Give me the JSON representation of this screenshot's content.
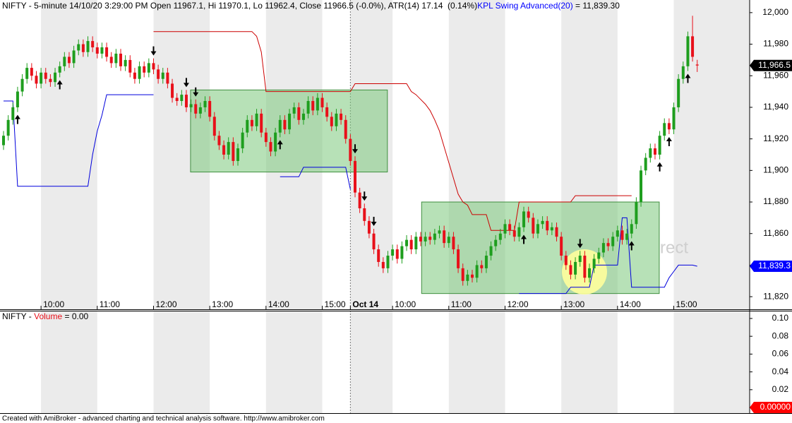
{
  "chart_data": [
    {
      "type": "candlestick",
      "title_parts": [
        {
          "text": "NIFTY - 5-minute 14/10/20 3:29:00 PM Open 11967.1, Hi 11970.1, Lo 11962.4, Close 11966.5 (-0.0%), ATR(14) 17.14  (0.14%)",
          "color": "#000000"
        },
        {
          "text": "KPL Swing Advanced(20)",
          "color": "#0000ff"
        },
        {
          "text": " = 11,839.30",
          "color": "#000000"
        }
      ],
      "categories": [
        null,
        null,
        null,
        null,
        null,
        null,
        null,
        null,
        "10:00",
        null,
        null,
        null,
        null,
        null,
        null,
        null,
        null,
        null,
        null,
        null,
        "11:00",
        null,
        null,
        null,
        null,
        null,
        null,
        null,
        null,
        null,
        null,
        null,
        "12:00",
        null,
        null,
        null,
        null,
        null,
        null,
        null,
        null,
        null,
        null,
        null,
        "13:00",
        null,
        null,
        null,
        null,
        null,
        null,
        null,
        null,
        null,
        null,
        null,
        "14:00",
        null,
        null,
        null,
        null,
        null,
        null,
        null,
        null,
        null,
        null,
        null,
        "15:00",
        null,
        null,
        null,
        null,
        null,
        "Oct 14",
        null,
        null,
        null,
        null,
        null,
        null,
        null,
        null,
        "10:00",
        null,
        null,
        null,
        null,
        null,
        null,
        null,
        null,
        null,
        null,
        null,
        "11:00",
        null,
        null,
        null,
        null,
        null,
        null,
        null,
        null,
        null,
        null,
        null,
        "12:00",
        null,
        null,
        null,
        null,
        null,
        null,
        null,
        null,
        null,
        null,
        null,
        "13:00",
        null,
        null,
        null,
        null,
        null,
        null,
        null,
        null,
        null,
        null,
        null,
        "14:00",
        null,
        null,
        null,
        null,
        null,
        null,
        null,
        null,
        null,
        null,
        null,
        "15:00",
        null,
        null,
        null,
        null,
        null
      ],
      "open": [
        11916,
        11922,
        11932,
        11940,
        11950,
        11958,
        11965,
        11960,
        11955,
        11962,
        11958,
        11956,
        11962,
        11966,
        11972,
        11968,
        11976,
        11980,
        11975,
        11982,
        11978,
        11974,
        11978,
        11972,
        11968,
        11974,
        11966,
        11970,
        11962,
        11958,
        11966,
        11962,
        11968,
        11964,
        11958,
        11962,
        11955,
        11946,
        11944,
        11948,
        11940,
        11942,
        11936,
        11940,
        11944,
        11934,
        11922,
        11916,
        11910,
        11918,
        11906,
        11914,
        11924,
        11932,
        11928,
        11936,
        11924,
        11918,
        11912,
        11924,
        11932,
        11926,
        11936,
        11940,
        11932,
        11936,
        11944,
        11938,
        11946,
        11940,
        11934,
        11928,
        11936,
        11932,
        11920,
        11906,
        11886,
        11876,
        11868,
        11860,
        11850,
        11842,
        11838,
        11846,
        11850,
        11844,
        11852,
        11856,
        11850,
        11858,
        11855,
        11858,
        11856,
        11860,
        11862,
        11854,
        11858,
        11850,
        11838,
        11830,
        11834,
        11832,
        11840,
        11838,
        11846,
        11852,
        11856,
        11860,
        11866,
        11862,
        11858,
        11864,
        11874,
        11870,
        11860,
        11866,
        11868,
        11862,
        11864,
        11858,
        11846,
        11840,
        11834,
        11842,
        11846,
        11832,
        11838,
        11844,
        11848,
        11854,
        11852,
        11858,
        11862,
        11856,
        11860,
        11866,
        11880,
        11900,
        11908,
        11914,
        11910,
        11922,
        11930,
        11926,
        11940,
        11958,
        11966,
        11985,
        11967.1
      ],
      "high": [
        11925,
        11935,
        11943,
        11953,
        11961,
        11968,
        11968,
        11963,
        11965,
        11965,
        11961,
        11965,
        11969,
        11975,
        11975,
        11979,
        11983,
        11983,
        11985,
        11985,
        11981,
        11981,
        11981,
        11975,
        11977,
        11977,
        11973,
        11973,
        11965,
        11969,
        11969,
        11971,
        11971,
        11967,
        11965,
        11965,
        11958,
        11949,
        11951,
        11951,
        11945,
        11945,
        11943,
        11947,
        11947,
        11937,
        11925,
        11919,
        11921,
        11921,
        11917,
        11927,
        11935,
        11935,
        11939,
        11939,
        11927,
        11921,
        11927,
        11935,
        11935,
        11939,
        11943,
        11943,
        11939,
        11947,
        11947,
        11949,
        11949,
        11943,
        11937,
        11939,
        11939,
        11935,
        11923,
        11909,
        11889,
        11879,
        11871,
        11863,
        11853,
        11845,
        11849,
        11853,
        11853,
        11855,
        11859,
        11859,
        11861,
        11861,
        11861,
        11861,
        11863,
        11865,
        11865,
        11861,
        11861,
        11853,
        11841,
        11837,
        11837,
        11843,
        11843,
        11849,
        11855,
        11859,
        11863,
        11869,
        11869,
        11865,
        11867,
        11877,
        11877,
        11873,
        11869,
        11871,
        11871,
        11867,
        11867,
        11861,
        11849,
        11843,
        11845,
        11849,
        11849,
        11841,
        11847,
        11851,
        11857,
        11857,
        11861,
        11865,
        11865,
        11863,
        11869,
        11883,
        11903,
        11911,
        11917,
        11917,
        11925,
        11933,
        11933,
        11943,
        11961,
        11969,
        11988,
        11998,
        11970.1
      ],
      "low": [
        11913,
        11919,
        11929,
        11937,
        11947,
        11955,
        11957,
        11952,
        11952,
        11955,
        11953,
        11953,
        11959,
        11963,
        11965,
        11965,
        11973,
        11972,
        11972,
        11975,
        11971,
        11971,
        11969,
        11965,
        11965,
        11963,
        11963,
        11959,
        11955,
        11955,
        11959,
        11959,
        11961,
        11955,
        11955,
        11952,
        11943,
        11941,
        11941,
        11937,
        11937,
        11933,
        11933,
        11937,
        11931,
        11919,
        11913,
        11907,
        11907,
        11903,
        11903,
        11911,
        11921,
        11925,
        11925,
        11921,
        11915,
        11909,
        11909,
        11921,
        11923,
        11923,
        11933,
        11929,
        11929,
        11933,
        11935,
        11935,
        11937,
        11931,
        11925,
        11925,
        11929,
        11917,
        11903,
        11883,
        11873,
        11865,
        11857,
        11847,
        11839,
        11835,
        11835,
        11843,
        11841,
        11841,
        11849,
        11847,
        11847,
        11852,
        11852,
        11853,
        11853,
        11857,
        11851,
        11851,
        11847,
        11835,
        11827,
        11827,
        11829,
        11829,
        11835,
        11835,
        11843,
        11849,
        11853,
        11857,
        11859,
        11855,
        11855,
        11861,
        11867,
        11857,
        11857,
        11863,
        11859,
        11859,
        11855,
        11843,
        11837,
        11831,
        11831,
        11839,
        11829,
        11829,
        11835,
        11841,
        11845,
        11849,
        11849,
        11855,
        11853,
        11853,
        11857,
        11863,
        11877,
        11897,
        11905,
        11907,
        11907,
        11919,
        11923,
        11923,
        11937,
        11955,
        11963,
        11969,
        11962.4
      ],
      "close": [
        11922,
        11932,
        11940,
        11950,
        11958,
        11965,
        11960,
        11955,
        11962,
        11958,
        11956,
        11962,
        11966,
        11972,
        11968,
        11976,
        11980,
        11975,
        11982,
        11978,
        11974,
        11978,
        11972,
        11968,
        11974,
        11966,
        11970,
        11962,
        11958,
        11966,
        11962,
        11968,
        11964,
        11958,
        11962,
        11955,
        11946,
        11944,
        11948,
        11940,
        11942,
        11936,
        11940,
        11944,
        11934,
        11922,
        11916,
        11910,
        11918,
        11906,
        11914,
        11924,
        11932,
        11928,
        11936,
        11924,
        11918,
        11912,
        11924,
        11932,
        11926,
        11936,
        11940,
        11932,
        11936,
        11944,
        11938,
        11946,
        11940,
        11934,
        11928,
        11936,
        11932,
        11920,
        11906,
        11886,
        11876,
        11868,
        11860,
        11850,
        11842,
        11838,
        11846,
        11850,
        11844,
        11852,
        11856,
        11850,
        11858,
        11855,
        11858,
        11856,
        11860,
        11862,
        11854,
        11858,
        11850,
        11838,
        11830,
        11834,
        11832,
        11840,
        11838,
        11846,
        11852,
        11856,
        11860,
        11866,
        11862,
        11858,
        11864,
        11874,
        11870,
        11860,
        11866,
        11868,
        11862,
        11864,
        11858,
        11846,
        11840,
        11834,
        11842,
        11846,
        11832,
        11838,
        11844,
        11848,
        11854,
        11852,
        11858,
        11862,
        11856,
        11860,
        11866,
        11880,
        11900,
        11908,
        11914,
        11910,
        11922,
        11930,
        11926,
        11940,
        11958,
        11966,
        11985,
        11972,
        11966.5
      ],
      "up_color": "#1e9e1e",
      "down_color": "#e8101a",
      "lines": [
        {
          "color": "#cc0000",
          "values": [
            null,
            null,
            null,
            null,
            null,
            null,
            null,
            null,
            null,
            null,
            null,
            null,
            null,
            null,
            null,
            null,
            null,
            null,
            null,
            null,
            null,
            null,
            null,
            null,
            null,
            null,
            null,
            null,
            null,
            null,
            null,
            null,
            11988,
            11988,
            11988,
            11988,
            11988,
            11988,
            11988,
            11988,
            11988,
            11988,
            11988,
            11988,
            11988,
            11988,
            11988,
            11988,
            11988,
            11988,
            11988,
            11988,
            11988,
            11988,
            11985,
            11975,
            11950,
            11950,
            11950,
            11950,
            11950,
            11950,
            11950,
            11950,
            11950,
            11950,
            11950,
            11950,
            11950,
            11950,
            11950,
            11950,
            11950,
            11950,
            11950,
            11955,
            11955,
            11955,
            11955,
            11955,
            11955,
            11955,
            11955,
            11955,
            11955,
            11955,
            11955,
            11950,
            11948,
            11945,
            11942,
            11938,
            11932,
            11925,
            11915,
            11905,
            11895,
            11885,
            11880,
            11878,
            11872,
            11872,
            11872,
            11872,
            11862,
            11862,
            11862,
            11862,
            11862,
            11862,
            11880,
            11880,
            11880,
            11880,
            11880,
            11880,
            11880,
            11880,
            11880,
            11880,
            11880,
            11880,
            11884,
            11884,
            11884,
            11884,
            11884,
            11884,
            11884,
            11884,
            11884,
            11884,
            11884,
            11884,
            11884,
            null,
            null,
            null,
            null,
            null,
            null,
            null,
            null,
            null,
            null,
            null,
            null,
            null,
            null
          ]
        },
        {
          "color": "#0000dd",
          "values": [
            11944,
            11944,
            11944,
            11890,
            11890,
            11890,
            11890,
            11890,
            11890,
            11890,
            11890,
            11890,
            11890,
            11890,
            11890,
            11890,
            11890,
            11890,
            11890,
            11910,
            11925,
            11935,
            11948,
            11948,
            11948,
            11948,
            11948,
            11948,
            11948,
            11948,
            11948,
            11948,
            11948,
            null,
            null,
            null,
            null,
            null,
            null,
            null,
            null,
            null,
            null,
            null,
            null,
            null,
            null,
            null,
            null,
            null,
            null,
            null,
            null,
            null,
            null,
            null,
            null,
            null,
            null,
            11896,
            11896,
            11896,
            11896,
            11896,
            11902,
            11902,
            11902,
            11902,
            11902,
            11902,
            11902,
            11902,
            11902,
            11902,
            11888,
            null,
            null,
            null,
            null,
            null,
            null,
            null,
            null,
            null,
            null,
            null,
            null,
            null,
            null,
            null,
            null,
            null,
            null,
            null,
            null,
            null,
            null,
            null,
            null,
            null,
            null,
            null,
            null,
            null,
            null,
            null,
            null,
            null,
            null,
            null,
            11822,
            11822,
            11822,
            11822,
            11822,
            11822,
            11822,
            11822,
            11822,
            11822,
            11822,
            11826,
            11826,
            11826,
            11826,
            11826,
            11840,
            11840,
            11840,
            11840,
            11840,
            11840,
            11870,
            11870,
            11826,
            11826,
            11826,
            11826,
            11826,
            11826,
            11826,
            11826,
            11832,
            11836,
            11840,
            11840,
            11840,
            11840,
            11839.3
          ]
        }
      ],
      "signals": {
        "buy": [
          3,
          12,
          59,
          111,
          134,
          140,
          142,
          146
        ],
        "sell": [
          32,
          39,
          41,
          75,
          77,
          79,
          123
        ]
      },
      "zones": [
        {
          "x0": 39.9,
          "x1": 81.9,
          "y0": 11899,
          "y1": 11951
        },
        {
          "x0": 89.2,
          "x1": 139.9,
          "y0": 11822,
          "y1": 11880
        }
      ],
      "zone_color": "#7cc87c",
      "watermark": "rect",
      "price_tags": [
        {
          "value": 11966.5,
          "label": "11,966.5",
          "color": "#000000"
        },
        {
          "value": 11839.3,
          "label": "11,839.3",
          "color": "#0000ff"
        }
      ],
      "ylim": [
        11812,
        12008
      ],
      "yticks": [
        {
          "value": 11820,
          "label": "11,820"
        },
        {
          "value": 11840,
          "label": "11,840"
        },
        {
          "value": 11860,
          "label": "11,860"
        },
        {
          "value": 11880,
          "label": "11,880"
        },
        {
          "value": 11900,
          "label": "11,900"
        },
        {
          "value": 11920,
          "label": "11,920"
        },
        {
          "value": 11940,
          "label": "11,940"
        },
        {
          "value": 11960,
          "label": "11,960"
        },
        {
          "value": 11980,
          "label": "11,980"
        },
        {
          "value": 12000,
          "label": "12,000"
        }
      ]
    },
    {
      "type": "volume",
      "title_parts": [
        {
          "text": "NIFTY - ",
          "color": "#000000"
        },
        {
          "text": "Volume",
          "color": "#e8101a"
        },
        {
          "text": " = 0.00",
          "color": "#000000"
        }
      ],
      "price_tags": [
        {
          "value": 0,
          "label": "0.00000",
          "color": "#ff0000"
        }
      ],
      "ylim": [
        -0.0063,
        0.1087
      ],
      "yticks": [
        0.02,
        0.04,
        0.06,
        0.08,
        {
          "value": 0.1,
          "label": "0.10"
        }
      ]
    }
  ],
  "footer": "Created with AmiBroker - advanced charting and technical analysis software. http://www.amibroker.com"
}
